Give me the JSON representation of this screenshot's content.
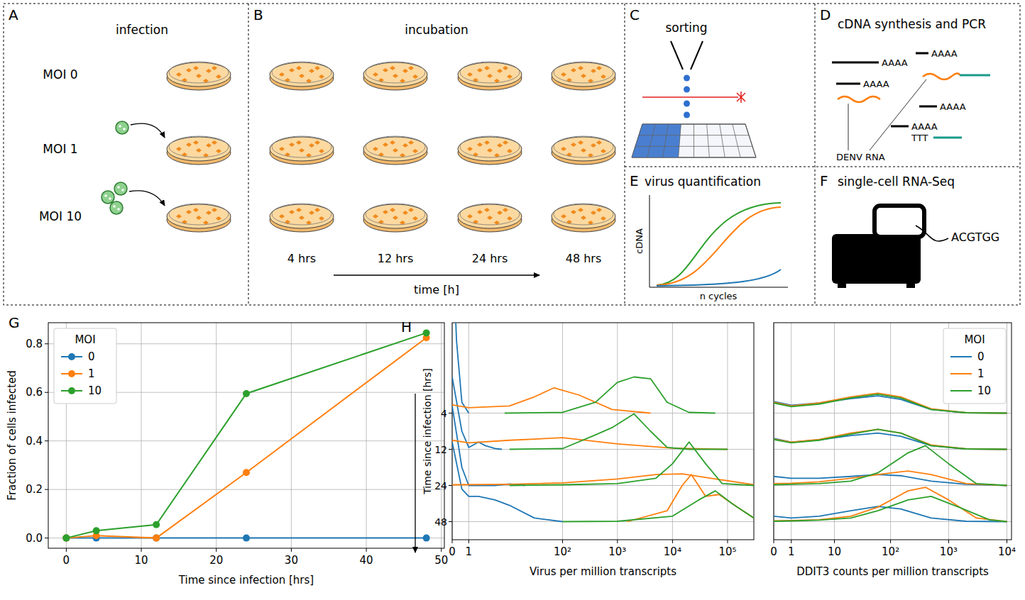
{
  "diagram": {
    "panels": [
      {
        "letter": "A",
        "title": "infection",
        "labels": [
          "MOI 0",
          "MOI 1",
          "MOI 10"
        ]
      },
      {
        "letter": "B",
        "title": "incubation",
        "labels": [
          "4 hrs",
          "12 hrs",
          "24 hrs",
          "48 hrs"
        ],
        "axis_label": "time [h]"
      },
      {
        "letter": "C",
        "title": "sorting"
      },
      {
        "letter": "D",
        "title": "cDNA synthesis and PCR",
        "labels": [
          "AAAA",
          "AAAA",
          "AAAA",
          "AAAA",
          "AAAA"
        ],
        "primer": "TTT",
        "annotation": "DENV RNA"
      },
      {
        "letter": "E",
        "title": "virus quantification",
        "y_label": "cDNA",
        "x_label": "n cycles"
      },
      {
        "letter": "F",
        "title": "single-cell RNA-Seq",
        "sequence": "ACGTGG"
      }
    ]
  },
  "chart_data": [
    {
      "type": "line",
      "panel": "G",
      "x_label": "Time since infection [hrs]",
      "y_label": "Fraction of cells infected",
      "x": [
        0,
        4,
        12,
        24,
        48
      ],
      "series": [
        {
          "name": "0",
          "color": "#1f77b4",
          "values": [
            0,
            0,
            0,
            0,
            0
          ]
        },
        {
          "name": "1",
          "color": "#ff7f0e",
          "values": [
            0,
            0.01,
            0,
            0.27,
            0.825
          ]
        },
        {
          "name": "10",
          "color": "#2ca02c",
          "values": [
            0,
            0.03,
            0.055,
            0.595,
            0.845
          ]
        }
      ],
      "xlim": [
        -2.4,
        50.4
      ],
      "ylim": [
        -0.042,
        0.887
      ],
      "xticks": [
        0,
        10,
        20,
        30,
        40,
        50
      ],
      "yticks": [
        {
          "value": 0,
          "label": "0.0"
        },
        0.2,
        0.4,
        0.6,
        0.8
      ],
      "grid": true,
      "legend": "upper left",
      "legend_title": "MOI",
      "marker": "circle"
    },
    {
      "type": "ridgeline",
      "panel": "H",
      "x_label": "Virus per million transcripts",
      "y_label": "Time since infection [hrs]",
      "categories": [
        "4",
        "12",
        "24",
        "48"
      ],
      "log": "x",
      "grid": true,
      "xlim": [
        0,
        300000
      ],
      "xticks": [
        0,
        1,
        {
          "value": 100,
          "label": "10²"
        },
        {
          "value": 1000,
          "label": "10³"
        },
        {
          "value": 10000,
          "label": "10⁴"
        },
        {
          "value": 100000,
          "label": "10⁵"
        }
      ],
      "series": [
        {
          "color": "#1f77b4",
          "rows": [
            {
              "x": [
                0,
                0.2,
                0.5,
                1
              ],
              "values": [
                5,
                2,
                0.3,
                0
              ]
            },
            {
              "x": [
                0,
                0.5,
                1,
                2,
                3,
                5,
                7
              ],
              "values": [
                2,
                0.5,
                0.05,
                0.2,
                0.1,
                0.02,
                0
              ]
            },
            {
              "x": [
                0,
                0.5,
                1,
                5,
                10,
                15,
                20
              ],
              "values": [
                2.2,
                0.5,
                0,
                0,
                0.04,
                0.02,
                0
              ]
            },
            {
              "x": [
                0,
                0.5,
                1,
                2,
                5,
                10,
                30,
                100
              ],
              "values": [
                2.2,
                0.9,
                0.7,
                0.7,
                0.6,
                0.45,
                0.1,
                0
              ]
            }
          ]
        },
        {
          "color": "#ff7f0e",
          "rows": [
            {
              "x": [
                0,
                1,
                10,
                30,
                70,
                200,
                800,
                4000
              ],
              "values": [
                0.23,
                0.15,
                0.2,
                0.45,
                0.7,
                0.5,
                0.1,
                0
              ]
            },
            {
              "x": [
                0,
                1,
                10,
                100,
                1000,
                10000,
                100000
              ],
              "values": [
                0.25,
                0.18,
                0.25,
                0.32,
                0.15,
                0.03,
                0
              ]
            },
            {
              "x": [
                0,
                10,
                100,
                1000,
                5000,
                15000,
                50000,
                300000
              ],
              "values": [
                0.02,
                0.03,
                0.07,
                0.18,
                0.3,
                0.32,
                0.2,
                0.02
              ]
            },
            {
              "x": [
                1500,
                8000,
                15000,
                22000,
                40000,
                70000,
                150000,
                300000
              ],
              "values": [
                0,
                0.3,
                1,
                1.3,
                0.7,
                0.75,
                0.4,
                0.1
              ]
            }
          ]
        },
        {
          "color": "#2ca02c",
          "rows": [
            {
              "x": [
                8,
                100,
                400,
                1000,
                2000,
                4000,
                8000,
                20000,
                60000
              ],
              "values": [
                0,
                0.02,
                0.3,
                0.85,
                1,
                0.95,
                0.3,
                0.02,
                0
              ]
            },
            {
              "x": [
                10,
                100,
                400,
                800,
                2000,
                4000,
                8000,
                20000,
                100000
              ],
              "values": [
                0,
                0.02,
                0.4,
                0.6,
                0.98,
                0.5,
                0.05,
                0,
                0
              ]
            },
            {
              "x": [
                10,
                100,
                1000,
                5000,
                10000,
                20000,
                40000,
                80000,
                300000
              ],
              "values": [
                0,
                0.02,
                0.05,
                0.2,
                0.6,
                1.2,
                0.6,
                0.05,
                0
              ]
            },
            {
              "x": [
                100,
                1000,
                10000,
                30000,
                60000,
                120000,
                300000
              ],
              "values": [
                0,
                0.01,
                0.15,
                0.6,
                0.85,
                0.5,
                0.1
              ]
            }
          ]
        }
      ]
    },
    {
      "type": "ridgeline",
      "x_label": "DDIT3 counts per million transcripts",
      "log": "x",
      "grid": true,
      "legend": "upper right",
      "legend_title": "MOI",
      "xlim": [
        0,
        12000
      ],
      "xticks": [
        0,
        1,
        10,
        {
          "value": 100,
          "label": "10²"
        },
        {
          "value": 1000,
          "label": "10³"
        },
        {
          "value": 10000,
          "label": "10⁴"
        }
      ],
      "series": [
        {
          "name": "0",
          "color": "#1f77b4",
          "rows": [
            {
              "x": [
                0,
                1,
                5,
                20,
                60,
                150,
                500,
                2000,
                10000
              ],
              "values": [
                0.32,
                0.22,
                0.28,
                0.4,
                0.48,
                0.38,
                0.1,
                0.01,
                0
              ]
            },
            {
              "x": [
                0,
                1,
                5,
                20,
                60,
                150,
                500,
                2000,
                10000
              ],
              "values": [
                0.3,
                0.2,
                0.26,
                0.38,
                0.45,
                0.36,
                0.1,
                0.01,
                0
              ]
            },
            {
              "x": [
                0,
                1,
                5,
                20,
                60,
                150,
                500,
                2000,
                10000
              ],
              "values": [
                0.25,
                0.2,
                0.2,
                0.25,
                0.3,
                0.27,
                0.12,
                0.03,
                0
              ]
            },
            {
              "x": [
                0,
                1,
                5,
                20,
                60,
                150,
                500,
                2000,
                10000
              ],
              "values": [
                0.15,
                0.1,
                0.15,
                0.3,
                0.42,
                0.35,
                0.1,
                0.01,
                0
              ]
            }
          ]
        },
        {
          "name": "1",
          "color": "#ff7f0e",
          "rows": [
            {
              "x": [
                0,
                1,
                5,
                20,
                60,
                150,
                500,
                2000,
                10000
              ],
              "values": [
                0.3,
                0.2,
                0.28,
                0.45,
                0.55,
                0.45,
                0.12,
                0.01,
                0
              ]
            },
            {
              "x": [
                0,
                1,
                5,
                20,
                60,
                150,
                500,
                2000,
                10000
              ],
              "values": [
                0.28,
                0.2,
                0.27,
                0.45,
                0.55,
                0.45,
                0.12,
                0.01,
                0
              ]
            },
            {
              "x": [
                0,
                1,
                5,
                20,
                60,
                200,
                500,
                2000,
                10000
              ],
              "values": [
                0.05,
                0.06,
                0.1,
                0.2,
                0.3,
                0.4,
                0.3,
                0.05,
                0
              ]
            },
            {
              "x": [
                0,
                1,
                5,
                20,
                60,
                200,
                400,
                1000,
                3000,
                10000
              ],
              "values": [
                0.02,
                0.03,
                0.05,
                0.15,
                0.4,
                0.85,
                0.95,
                0.6,
                0.1,
                0
              ]
            }
          ]
        },
        {
          "name": "10",
          "color": "#2ca02c",
          "rows": [
            {
              "x": [
                0,
                1,
                5,
                20,
                60,
                150,
                500,
                2000,
                10000
              ],
              "values": [
                0.28,
                0.18,
                0.25,
                0.42,
                0.52,
                0.42,
                0.1,
                0.01,
                0
              ]
            },
            {
              "x": [
                0,
                1,
                5,
                20,
                60,
                150,
                500,
                2000,
                10000
              ],
              "values": [
                0.27,
                0.18,
                0.25,
                0.42,
                0.55,
                0.45,
                0.1,
                0.01,
                0
              ]
            },
            {
              "x": [
                0,
                1,
                5,
                20,
                60,
                200,
                400,
                1000,
                3000,
                10000
              ],
              "values": [
                0.02,
                0.03,
                0.05,
                0.12,
                0.35,
                0.9,
                1.1,
                0.6,
                0.05,
                0
              ]
            },
            {
              "x": [
                0,
                1,
                5,
                20,
                60,
                200,
                500,
                1500,
                5000,
                10000
              ],
              "values": [
                0.01,
                0.02,
                0.04,
                0.1,
                0.3,
                0.6,
                0.7,
                0.4,
                0.05,
                0
              ]
            }
          ]
        }
      ]
    }
  ]
}
